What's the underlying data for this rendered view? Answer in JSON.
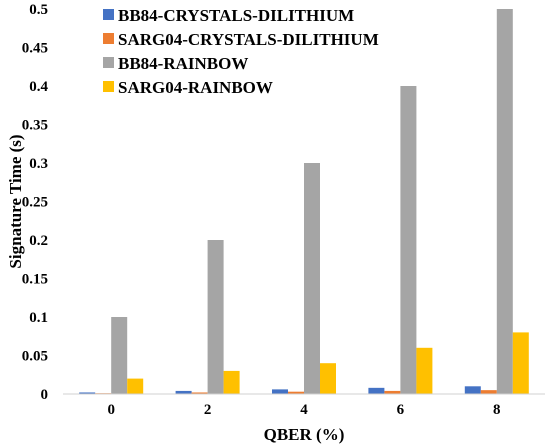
{
  "chart_data": {
    "type": "bar",
    "title": "",
    "xlabel": "QBER (%)",
    "ylabel": "Signature Time (s)",
    "categories": [
      "0",
      "2",
      "4",
      "6",
      "8"
    ],
    "ylim": [
      0,
      0.5
    ],
    "yticks": [
      "0",
      "0.05",
      "0.1",
      "0.15",
      "0.2",
      "0.25",
      "0.3",
      "0.35",
      "0.4",
      "0.45",
      "0.5"
    ],
    "grid": false,
    "legend_position": "top-left",
    "series": [
      {
        "name": "BB84-CRYSTALS-DILITHIUM",
        "color": "#4472C4",
        "values": [
          0.002,
          0.004,
          0.006,
          0.008,
          0.01
        ]
      },
      {
        "name": "SARG04-CRYSTALS-DILITHIUM",
        "color": "#ED7D31",
        "values": [
          0.001,
          0.002,
          0.003,
          0.004,
          0.005
        ]
      },
      {
        "name": "BB84-RAINBOW",
        "color": "#A5A5A5",
        "values": [
          0.1,
          0.2,
          0.3,
          0.4,
          0.5
        ]
      },
      {
        "name": "SARG04-RAINBOW",
        "color": "#FFC000",
        "values": [
          0.02,
          0.03,
          0.04,
          0.06,
          0.08
        ]
      }
    ]
  }
}
